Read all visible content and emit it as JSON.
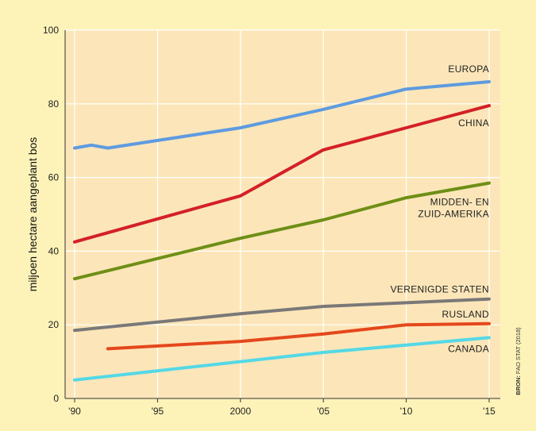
{
  "chart_data": {
    "type": "line",
    "ylabel": "miljoen hectare aangeplant bos",
    "ylim": [
      0,
      100
    ],
    "xlim": [
      1990,
      2015
    ],
    "grid": true,
    "y_ticks": [
      "0",
      "20",
      "40",
      "60",
      "80",
      "100"
    ],
    "x_ticks": [
      {
        "x": 1990,
        "label": "'90"
      },
      {
        "x": 1995,
        "label": "'95"
      },
      {
        "x": 2000,
        "label": "2000"
      },
      {
        "x": 2005,
        "label": "'05"
      },
      {
        "x": 2010,
        "label": "'10"
      },
      {
        "x": 2015,
        "label": "'15"
      }
    ],
    "source": {
      "prefix": "BRON:",
      "text": "FAO STAT (2018)"
    },
    "series": [
      {
        "name": "EUROPA",
        "color": "#5e9be0",
        "label_lines": [
          "EUROPA"
        ],
        "points": [
          [
            1990,
            68
          ],
          [
            1991,
            68.8
          ],
          [
            1992,
            68
          ],
          [
            2000,
            73.5
          ],
          [
            2005,
            78.5
          ],
          [
            2010,
            84
          ],
          [
            2015,
            86
          ]
        ]
      },
      {
        "name": "CHINA",
        "color": "#d42027",
        "label_lines": [
          "CHINA"
        ],
        "points": [
          [
            1990,
            42.5
          ],
          [
            2000,
            55
          ],
          [
            2005,
            67.5
          ],
          [
            2010,
            73.5
          ],
          [
            2015,
            79.5
          ]
        ]
      },
      {
        "name": "MIDDEN- EN ZUID-AMERIKA",
        "color": "#6e8f16",
        "label_lines": [
          "MIDDEN- EN",
          "ZUID-AMERIKA"
        ],
        "points": [
          [
            1990,
            32.5
          ],
          [
            2000,
            43.5
          ],
          [
            2005,
            48.5
          ],
          [
            2010,
            54.5
          ],
          [
            2015,
            58.5
          ]
        ]
      },
      {
        "name": "VERENIGDE STATEN",
        "color": "#7a7878",
        "label_lines": [
          "VERENIGDE STATEN"
        ],
        "points": [
          [
            1990,
            18.5
          ],
          [
            2000,
            23
          ],
          [
            2005,
            25
          ],
          [
            2010,
            26
          ],
          [
            2015,
            27
          ]
        ]
      },
      {
        "name": "RUSLAND",
        "color": "#e5471c",
        "label_lines": [
          "RUSLAND"
        ],
        "points": [
          [
            1992,
            13.5
          ],
          [
            2000,
            15.5
          ],
          [
            2005,
            17.5
          ],
          [
            2010,
            20
          ],
          [
            2015,
            20.3
          ]
        ]
      },
      {
        "name": "CANADA",
        "color": "#54d8e6",
        "label_lines": [
          "CANADA"
        ],
        "points": [
          [
            1990,
            5
          ],
          [
            2000,
            10
          ],
          [
            2005,
            12.5
          ],
          [
            2010,
            14.5
          ],
          [
            2015,
            16.5
          ]
        ]
      }
    ]
  }
}
